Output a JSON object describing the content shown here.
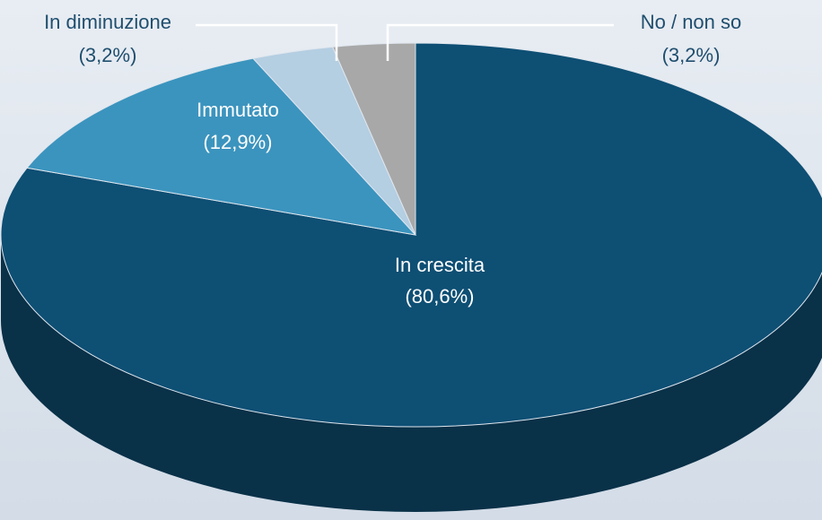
{
  "chart_data": {
    "type": "pie",
    "categories": [
      "In crescita",
      "Immutato",
      "In diminuzione",
      "No / non so"
    ],
    "values": [
      80.6,
      12.9,
      3.2,
      3.2
    ],
    "value_labels": [
      "(80,6%)",
      "(12,9%)",
      "(3,2%)",
      "(3,2%)"
    ],
    "colors": [
      "#0e4f74",
      "#3b94be",
      "#b4cee2",
      "#a8a8a8"
    ]
  }
}
